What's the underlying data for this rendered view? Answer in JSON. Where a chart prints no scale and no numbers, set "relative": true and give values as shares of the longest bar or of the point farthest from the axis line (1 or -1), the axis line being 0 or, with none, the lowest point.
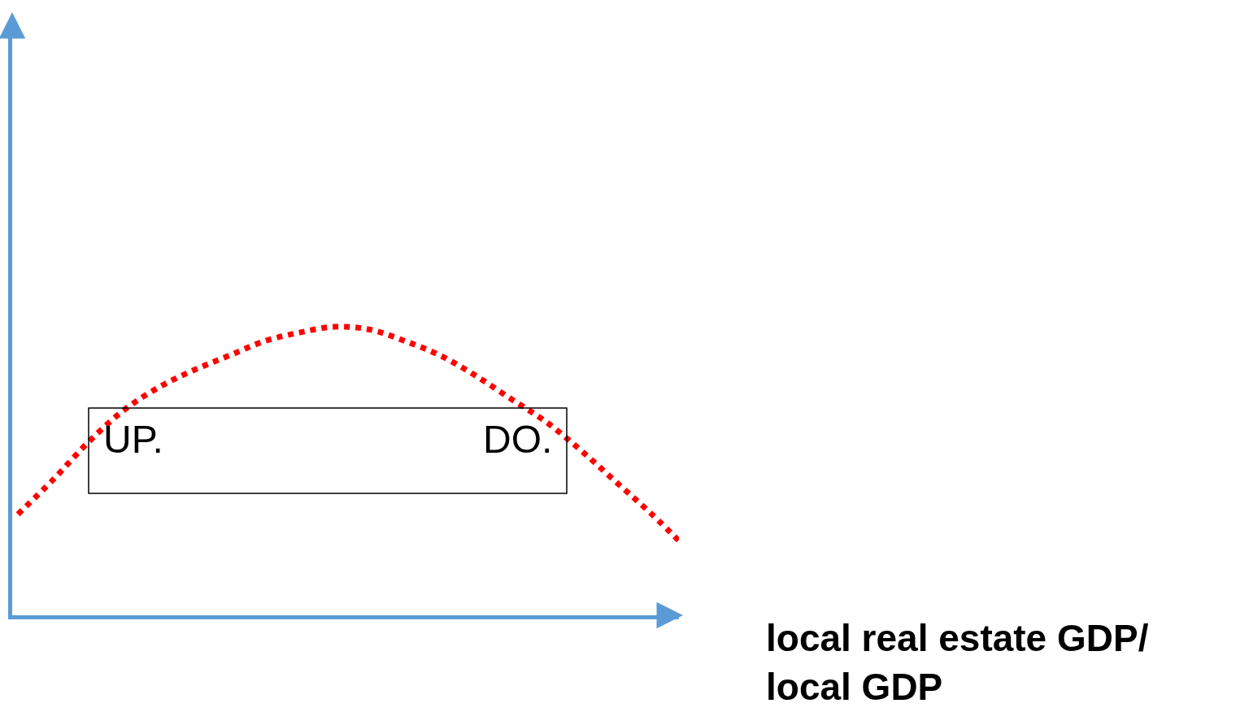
{
  "chart_data": {
    "type": "line",
    "relative": true,
    "categories": [
      null,
      null,
      null,
      null,
      null,
      null,
      null,
      null,
      null,
      null,
      null,
      null,
      null,
      null,
      null,
      null,
      null,
      null,
      null,
      null
    ],
    "series": [
      {
        "color": "#ff0000",
        "values": [
          0.35,
          0.47,
          0.6,
          0.71,
          0.79,
          0.85,
          0.9,
          0.95,
          0.98,
          1.0,
          0.99,
          0.95,
          0.9,
          0.83,
          0.75,
          0.67,
          0.57,
          0.46,
          0.35,
          0.23
        ]
      }
    ],
    "xlabel": "local real estate GDP/\nlocal GDP",
    "annotations": [
      "UP.",
      "DO."
    ],
    "line_style": "dotted",
    "marker": "none"
  }
}
